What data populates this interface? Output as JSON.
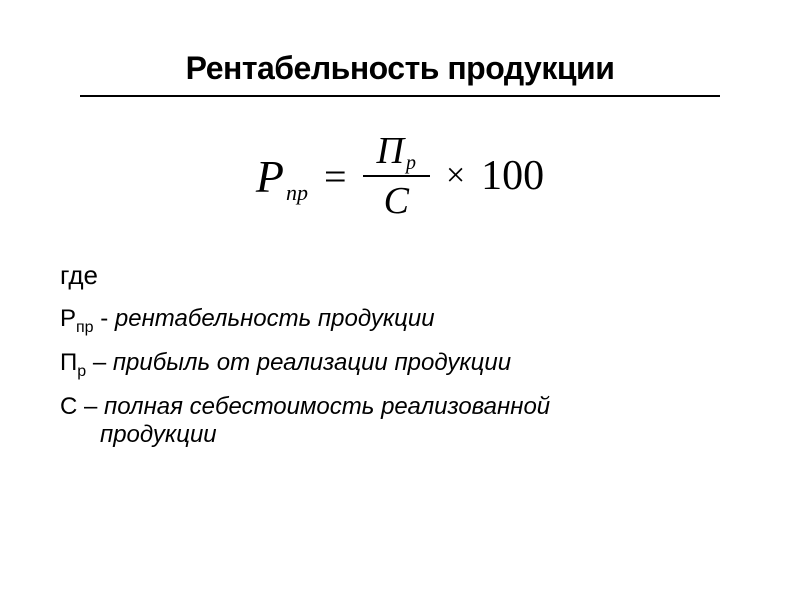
{
  "title": "Рентабельность продукции",
  "formula": {
    "lhs_var": "Р",
    "lhs_sub": "пр",
    "equals": "=",
    "numerator_var": "П",
    "numerator_sub": "р",
    "denominator_var": "С",
    "times": "×",
    "constant": "100"
  },
  "where_label": "где",
  "definitions": [
    {
      "var": "Р",
      "sub": "пр",
      "dash": " - ",
      "text": "рентабельность продукции",
      "cont": ""
    },
    {
      "var": "П",
      "sub": "р",
      "dash": " – ",
      "text": "прибыль от реализации продукции",
      "cont": ""
    },
    {
      "var": "С",
      "sub": "",
      "dash": " – ",
      "text": "полная себестоимость реализованной",
      "cont": "продукции"
    }
  ],
  "colors": {
    "background": "#ffffff",
    "text": "#000000",
    "rule": "#000000"
  },
  "typography": {
    "title_fontsize": 32,
    "formula_fontsize": 42,
    "body_fontsize": 24,
    "title_weight": "bold",
    "formula_family": "Times New Roman",
    "body_family": "Verdana"
  }
}
